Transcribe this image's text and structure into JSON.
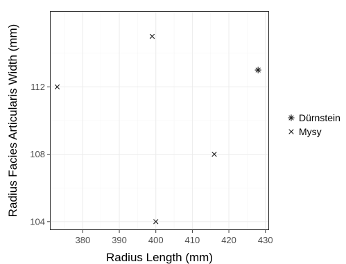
{
  "chart_data": {
    "type": "scatter",
    "title": "",
    "xlabel": "Radius Length (mm)",
    "ylabel": "Radius Facies Articularis Width (mm)",
    "xlim": [
      371,
      431
    ],
    "ylim": [
      103.5,
      116.5
    ],
    "x_ticks": [
      380,
      390,
      400,
      410,
      420,
      430
    ],
    "y_ticks": [
      104,
      108,
      112
    ],
    "grid": true,
    "legend_position": "right",
    "series": [
      {
        "name": "Dürnstein",
        "marker": "asterisk",
        "points": [
          {
            "x": 428,
            "y": 113
          }
        ]
      },
      {
        "name": "Mysy",
        "marker": "cross",
        "points": [
          {
            "x": 373,
            "y": 112
          },
          {
            "x": 399,
            "y": 115
          },
          {
            "x": 400,
            "y": 104
          },
          {
            "x": 416,
            "y": 108
          }
        ]
      }
    ],
    "colors": {
      "points": "#1a1a1a",
      "panel_border": "#333333",
      "grid": "#ebebeb"
    }
  }
}
